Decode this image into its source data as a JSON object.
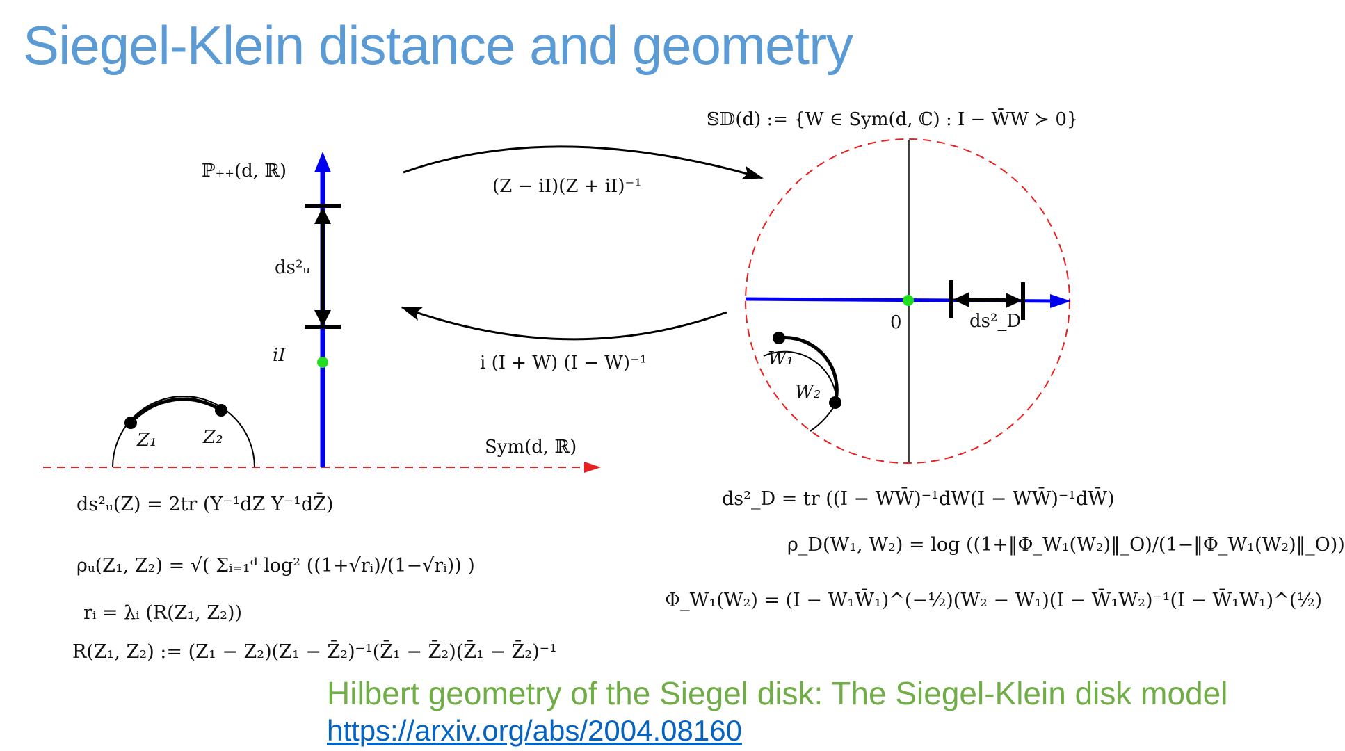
{
  "slide": {
    "title": "Siegel-Klein distance and geometry",
    "footer_title": "Hilbert geometry of the Siegel disk: The Siegel-Klein disk model",
    "footer_link": "https://arxiv.org/abs/2004.08160"
  },
  "labels": {
    "p_plus": "ℙ₊₊(d, ℝ)",
    "ds_u": "ds²ᵤ",
    "iI": "iI",
    "z1": "Z₁",
    "z2": "Z₂",
    "sym_r": "Sym(d, ℝ)",
    "map_forward": "(Z − iI)(Z + iI)⁻¹",
    "map_backward": "i (I + W) (I − W)⁻¹",
    "disk_def": "𝕊𝔻(d) := {W ∈ Sym(d, ℂ) : I − W̄W ≻ 0}",
    "zero": "0",
    "ds_d": "ds²_D",
    "w1": "W₁",
    "w2": "W₂"
  },
  "formulas": {
    "left_1": "ds²ᵤ(Z) = 2tr (Y⁻¹dZ Y⁻¹dZ̄)",
    "left_2": "ρᵤ(Z₁, Z₂) = √( Σᵢ₌₁ᵈ log² ((1+√rᵢ)/(1−√rᵢ)) )",
    "left_3": "rᵢ = λᵢ (R(Z₁, Z₂))",
    "left_4": "R(Z₁, Z₂) := (Z₁ − Z₂)(Z₁ − Z̄₂)⁻¹(Z̄₁ − Z̄₂)(Z̄₁ − Z̄₂)⁻¹",
    "right_1": "ds²_D = tr ((I − WW̄)⁻¹dW(I − WW̄)⁻¹dW̄)",
    "right_2": "ρ_D(W₁, W₂) = log ((1+‖Φ_W₁(W₂)‖_O)/(1−‖Φ_W₁(W₂)‖_O))",
    "right_3": "Φ_W₁(W₂) = (I − W₁W̄₁)^(−½)(W₂ − W₁)(I − W̄₁W₂)⁻¹(I − W̄₁W₁)^(½)"
  },
  "colors": {
    "title": "#5b9bd5",
    "footer_title": "#70ad47",
    "link": "#0563c1",
    "blue_axis": "#0000ee",
    "red_dashed": "#e8201f",
    "green_point": "#22dd22"
  }
}
